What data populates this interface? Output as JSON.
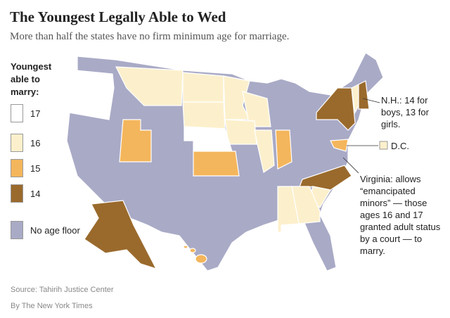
{
  "header": {
    "title": "The Youngest Legally Able to Wed",
    "subtitle": "More than half the states have no firm minimum age for marriage."
  },
  "legend": {
    "title": "Youngest able to marry:",
    "items": [
      {
        "label": "17",
        "color": "#ffffff"
      },
      {
        "label": "16",
        "color": "#fcf0cc"
      },
      {
        "label": "15",
        "color": "#f4b65c"
      },
      {
        "label": "14",
        "color": "#9a6a2c"
      },
      {
        "label": "No age floor",
        "color": "#a9aac6"
      }
    ]
  },
  "annotations": {
    "nh": "N.H.: 14 for boys, 13 for girls.",
    "dc": "D.C.",
    "virginia": "Virginia: allows “emancipated minors” — those ages 16 and 17 granted adult status by a court — to marry."
  },
  "footer": {
    "source": "Source: Tahirih Justice Center",
    "byline": "By The New York Times"
  }
}
